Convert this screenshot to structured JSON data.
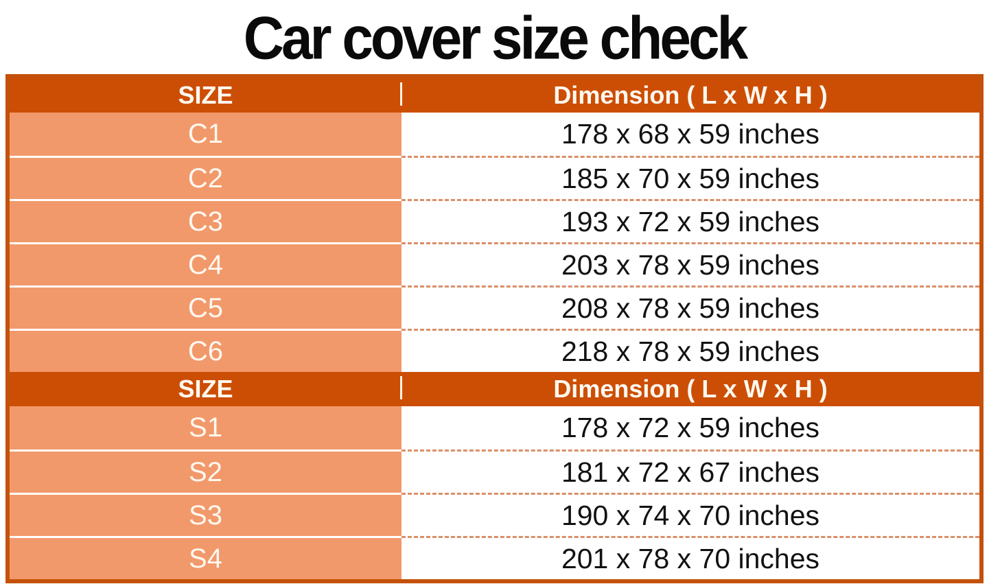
{
  "title": "Car cover size check",
  "colors": {
    "header_bg": "#cc4e04",
    "row_label_bg": "#f2996b",
    "table_border": "#c4510a",
    "dashed_separator": "#d98f68",
    "header_text": "#fdf8f0",
    "row_label_text": "#fdf8f0",
    "dimension_text": "#121212",
    "title_text": "#0a0a0a"
  },
  "chart_data": [
    {
      "type": "table",
      "title": "Car cover size check",
      "columns": [
        "SIZE",
        "Dimension ( L x W x H )"
      ],
      "rows": [
        [
          "C1",
          "178 x 68 x 59 inches"
        ],
        [
          "C2",
          "185 x 70 x 59 inches"
        ],
        [
          "C3",
          "193 x 72 x 59 inches"
        ],
        [
          "C4",
          "203 x 78 x 59 inches"
        ],
        [
          "C5",
          "208 x 78 x 59 inches"
        ],
        [
          "C6",
          "218 x 78 x 59 inches"
        ]
      ]
    },
    {
      "type": "table",
      "columns": [
        "SIZE",
        "Dimension ( L x W x H )"
      ],
      "rows": [
        [
          "S1",
          "178 x 72 x 59 inches"
        ],
        [
          "S2",
          "181 x 72 x 67 inches"
        ],
        [
          "S3",
          "190 x 74 x 70 inches"
        ],
        [
          "S4",
          "201 x 78 x 70 inches"
        ]
      ]
    }
  ]
}
